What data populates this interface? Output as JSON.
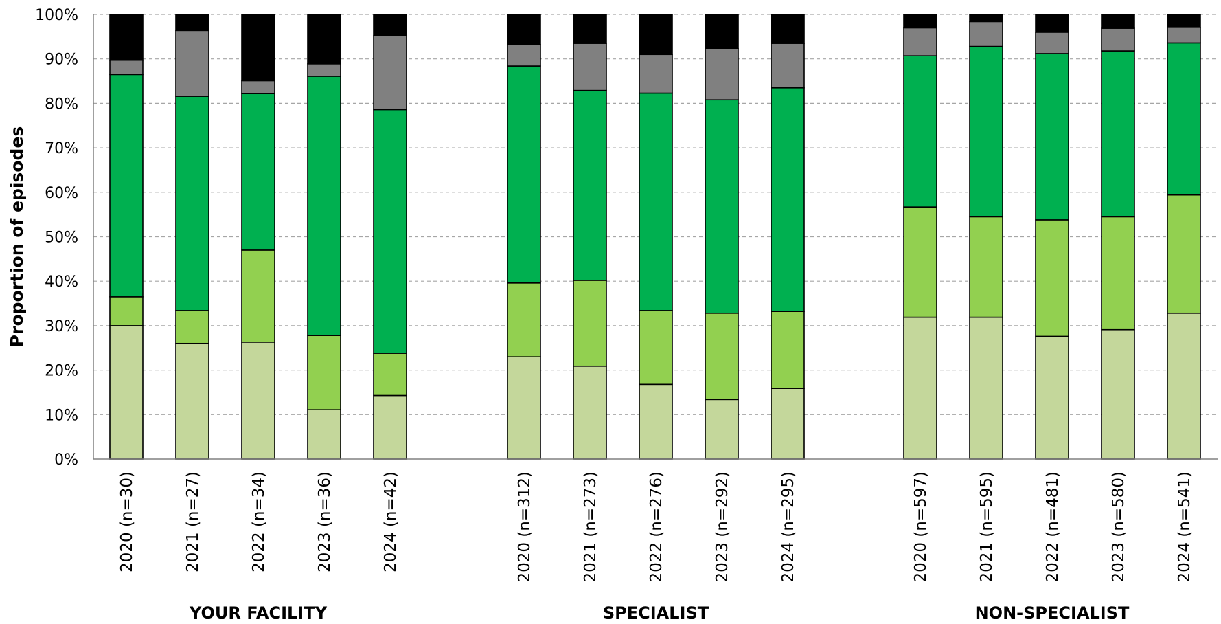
{
  "chart_data": {
    "type": "bar",
    "stacked": true,
    "ylabel": "Proportion of episodes",
    "ylim": [
      0,
      100
    ],
    "yticks": [
      "0%",
      "10%",
      "20%",
      "30%",
      "40%",
      "50%",
      "60%",
      "70%",
      "80%",
      "90%",
      "100%"
    ],
    "grid": "horizontal-dashed",
    "groups": [
      {
        "label": "YOUR FACILITY",
        "categories": [
          "2020 (n=30)",
          "2021 (n=27)",
          "2022 (n=34)",
          "2023 (n=36)",
          "2024 (n=42)"
        ],
        "series_values": [
          [
            30.0,
            6.5,
            50.0,
            3.2,
            10.3
          ],
          [
            26.0,
            7.4,
            48.2,
            14.8,
            3.6
          ],
          [
            26.3,
            20.7,
            35.2,
            2.9,
            14.9
          ],
          [
            11.1,
            16.7,
            58.3,
            2.8,
            11.1
          ],
          [
            14.3,
            9.5,
            54.8,
            16.6,
            4.8
          ]
        ]
      },
      {
        "label": "SPECIALIST",
        "categories": [
          "2020 (n=312)",
          "2021 (n=273)",
          "2022 (n=276)",
          "2023 (n=292)",
          "2024 (n=295)"
        ],
        "series_values": [
          [
            23.0,
            16.6,
            48.8,
            4.8,
            6.8
          ],
          [
            20.9,
            19.3,
            42.7,
            10.6,
            6.5
          ],
          [
            16.8,
            16.6,
            48.9,
            8.7,
            9.0
          ],
          [
            13.4,
            19.4,
            48.0,
            11.5,
            7.7
          ],
          [
            15.9,
            17.3,
            50.3,
            10.0,
            6.5
          ]
        ]
      },
      {
        "label": "NON-SPECIALIST",
        "categories": [
          "2020 (n=597)",
          "2021 (n=595)",
          "2022 (n=481)",
          "2023 (n=580)",
          "2024 (n=541)"
        ],
        "series_values": [
          [
            31.9,
            24.8,
            34.0,
            6.3,
            3.0
          ],
          [
            31.9,
            22.6,
            38.3,
            5.6,
            1.6
          ],
          [
            27.6,
            26.2,
            37.4,
            4.8,
            4.0
          ],
          [
            29.1,
            25.4,
            37.3,
            5.1,
            3.1
          ],
          [
            32.8,
            26.6,
            34.2,
            3.5,
            2.9
          ]
        ]
      }
    ],
    "series_colors": [
      "#c4d79b",
      "#92d050",
      "#00b050",
      "#808080",
      "#000000"
    ]
  }
}
